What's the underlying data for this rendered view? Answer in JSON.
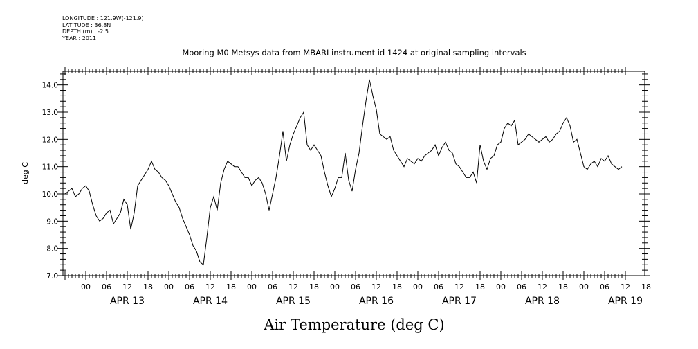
{
  "header": {
    "lines": [
      "LONGITUDE : 121.9W(-121.9)",
      "LATITUDE : 36.8N",
      "DEPTH (m) : -2.5",
      "YEAR : 2011"
    ]
  },
  "chart_data": {
    "type": "line",
    "title": "Mooring M0 Metsys data from MBARI instrument id 1424 at original sampling intervals",
    "xlabel": "Air Temperature (deg C)",
    "ylabel": "deg C",
    "ylim": [
      7.0,
      14.5
    ],
    "y_major_ticks": [
      "7.0",
      "8.0",
      "9.0",
      "10.0",
      "11.0",
      "12.0",
      "13.0",
      "14.0"
    ],
    "x_unit": "hours since APR 12 18:00, 2011",
    "xlim": [
      0,
      162
    ],
    "x_hour_labels": [
      "00",
      "06",
      "12",
      "18",
      "00",
      "06",
      "12",
      "18",
      "00",
      "06",
      "12",
      "18",
      "00",
      "06",
      "12",
      "18",
      "00",
      "06",
      "12",
      "18",
      "00",
      "06",
      "12",
      "18",
      "00",
      "06",
      "12",
      "18"
    ],
    "x_day_labels": [
      "APR 13",
      "APR 14",
      "APR 15",
      "APR 16",
      "APR 17",
      "APR 18",
      "APR 19"
    ],
    "grid": false,
    "series": [
      {
        "name": "",
        "x": [
          0,
          1,
          2,
          3,
          4,
          5,
          6,
          7,
          8,
          9,
          10,
          11,
          12,
          13,
          14,
          15,
          16,
          17,
          18,
          19,
          20,
          21,
          22,
          23,
          24,
          25,
          26,
          27,
          28,
          29,
          30,
          31,
          32,
          33,
          34,
          35,
          36,
          37,
          38,
          39,
          40,
          41,
          42,
          43,
          44,
          45,
          46,
          47,
          48,
          49,
          50,
          51,
          52,
          53,
          54,
          55,
          56,
          57,
          58,
          59,
          60,
          61,
          62,
          63,
          64,
          65,
          66,
          67,
          68,
          69,
          70,
          71,
          72,
          73,
          74,
          75,
          76,
          77,
          78,
          79,
          80,
          81,
          82,
          83,
          84,
          85,
          86,
          87,
          88,
          89,
          90,
          91,
          92,
          93,
          94,
          95,
          96,
          97,
          98,
          99,
          100,
          101,
          102,
          103,
          104,
          105,
          106,
          107,
          108,
          109,
          110,
          111,
          112,
          113,
          114,
          115,
          116,
          117,
          118,
          119,
          120,
          121,
          122,
          123,
          124,
          125,
          126,
          127,
          128,
          129,
          130,
          131,
          132,
          133,
          134,
          135,
          136,
          137,
          138,
          139,
          140,
          141,
          142,
          143,
          144,
          145,
          146,
          147,
          148,
          149,
          150,
          151,
          152,
          153,
          154,
          155,
          156,
          157,
          158,
          159,
          160,
          161
        ],
        "y": [
          10.0,
          10.1,
          10.2,
          9.9,
          10.0,
          10.2,
          10.3,
          10.1,
          9.6,
          9.2,
          9.0,
          9.1,
          9.3,
          9.4,
          8.9,
          9.1,
          9.3,
          9.8,
          9.6,
          8.7,
          9.3,
          10.3,
          10.5,
          10.7,
          10.9,
          11.2,
          10.9,
          10.8,
          10.6,
          10.5,
          10.3,
          10.0,
          9.7,
          9.5,
          9.1,
          8.8,
          8.5,
          8.1,
          7.9,
          7.5,
          7.4,
          8.4,
          9.5,
          9.9,
          9.4,
          10.4,
          10.9,
          11.2,
          11.1,
          11.0,
          11.0,
          10.8,
          10.6,
          10.6,
          10.3,
          10.5,
          10.6,
          10.4,
          10.0,
          9.4,
          10.0,
          10.6,
          11.4,
          12.3,
          11.2,
          11.8,
          12.2,
          12.5,
          12.8,
          13.0,
          11.8,
          11.6,
          11.8,
          11.6,
          11.4,
          10.8,
          10.3,
          9.9,
          10.2,
          10.6,
          10.6,
          11.5,
          10.5,
          10.1,
          10.9,
          11.5,
          12.5,
          13.4,
          14.2,
          13.6,
          13.1,
          12.2,
          12.1,
          12.0,
          12.1,
          11.6,
          11.4,
          11.2,
          11.0,
          11.3,
          11.2,
          11.1,
          11.3,
          11.2,
          11.4,
          11.5,
          11.6,
          11.8,
          11.4,
          11.7,
          11.9,
          11.6,
          11.5,
          11.1,
          11.0,
          10.8,
          10.6,
          10.6,
          10.8,
          10.4,
          11.8,
          11.2,
          10.9,
          11.3,
          11.4,
          11.8,
          11.9,
          12.4,
          12.6,
          12.5,
          12.7,
          11.8,
          11.9,
          12.0,
          12.2,
          12.1,
          12.0,
          11.9,
          12.0,
          12.1,
          11.9,
          12.0,
          12.2,
          12.3,
          12.6,
          12.8,
          12.5,
          11.9,
          12.0,
          11.5,
          11.0,
          10.9,
          11.1,
          11.2,
          11.0,
          11.3,
          11.2,
          11.4,
          11.1,
          11.0,
          10.9,
          11.0
        ]
      }
    ]
  }
}
